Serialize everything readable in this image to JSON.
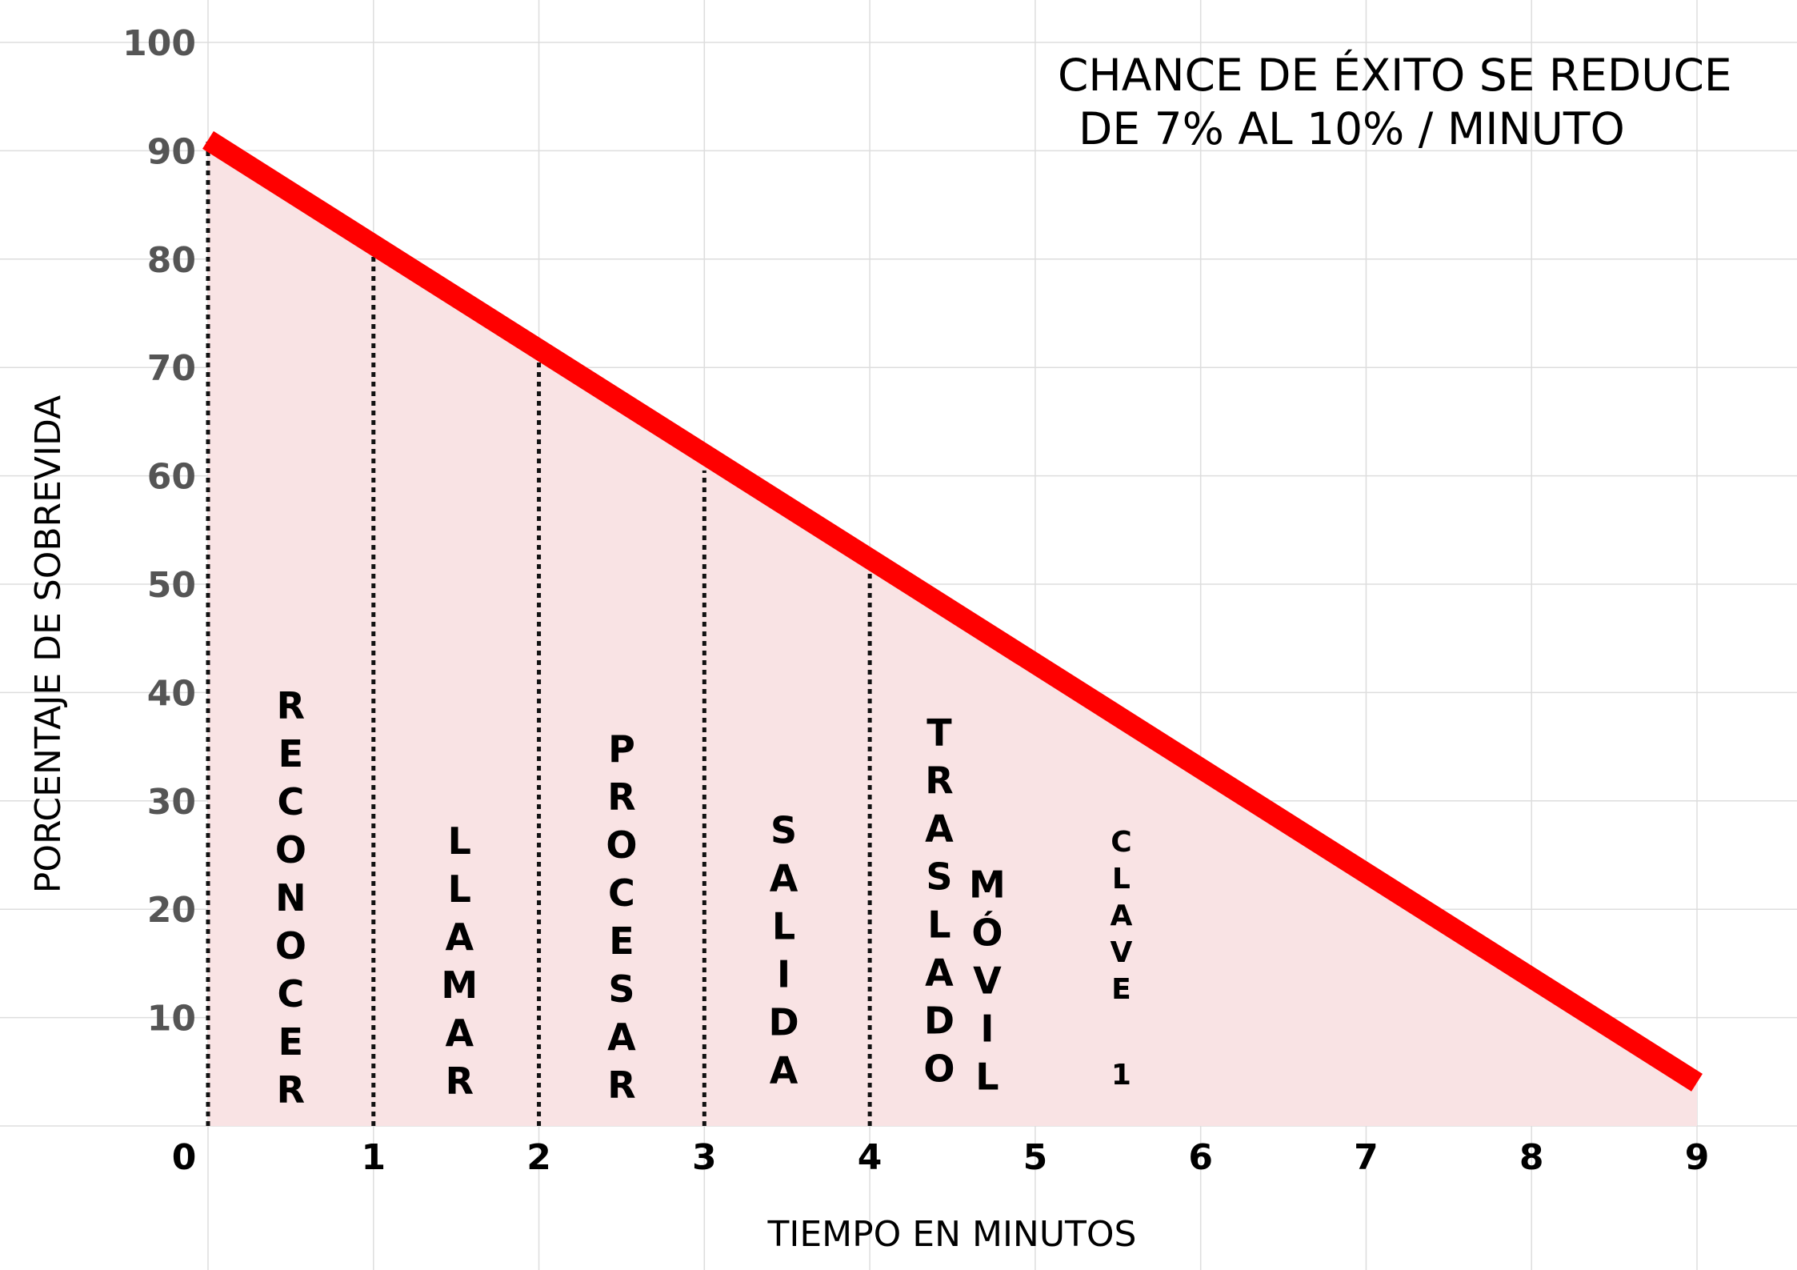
{
  "chart_data": {
    "type": "line",
    "title_lines": [
      "CHANCE DE ÉXITO SE REDUCE",
      "DE 7% AL 10%  / MINUTO"
    ],
    "xlabel": "TIEMPO EN MINUTOS",
    "ylabel": "PORCENTAJE DE SOBREVIDA",
    "xlim": [
      0,
      9
    ],
    "ylim": [
      0,
      100
    ],
    "x_ticks": [
      0,
      1,
      2,
      3,
      4,
      5,
      6,
      7,
      8,
      9
    ],
    "y_ticks": [
      10,
      20,
      30,
      40,
      50,
      60,
      70,
      80,
      90,
      100
    ],
    "grid": true,
    "series": [
      {
        "x": [
          0,
          9
        ],
        "y": [
          91,
          4
        ],
        "color": "#ff0000"
      }
    ],
    "fill_color": "#f9e3e4",
    "stage_dividers": [
      {
        "x": 0,
        "y": 91
      },
      {
        "x": 1,
        "y": 81
      },
      {
        "x": 2,
        "y": 70.5
      },
      {
        "x": 3,
        "y": 60.5
      },
      {
        "x": 4,
        "y": 51
      }
    ],
    "stage_labels": [
      {
        "text": "RECONOCER",
        "x": 0.5,
        "y_top": 41
      },
      {
        "text": "LLAMAR",
        "x": 1.52,
        "y_top": 28.5
      },
      {
        "text": "PROCESAR",
        "x": 2.5,
        "y_top": 37
      },
      {
        "text": "SALIDA",
        "x": 3.48,
        "y_top": 29.5
      },
      {
        "text": "TRASLADO",
        "x": 4.42,
        "y_top": 38.5
      },
      {
        "text": "MÓVIL",
        "x": 4.71,
        "y_top": 24.5
      },
      {
        "text": "CLAVE",
        "x": 5.52,
        "y_top": 28,
        "small": true
      },
      {
        "text": "1",
        "x": 5.52,
        "y_top": 6.5,
        "small": true
      }
    ]
  }
}
